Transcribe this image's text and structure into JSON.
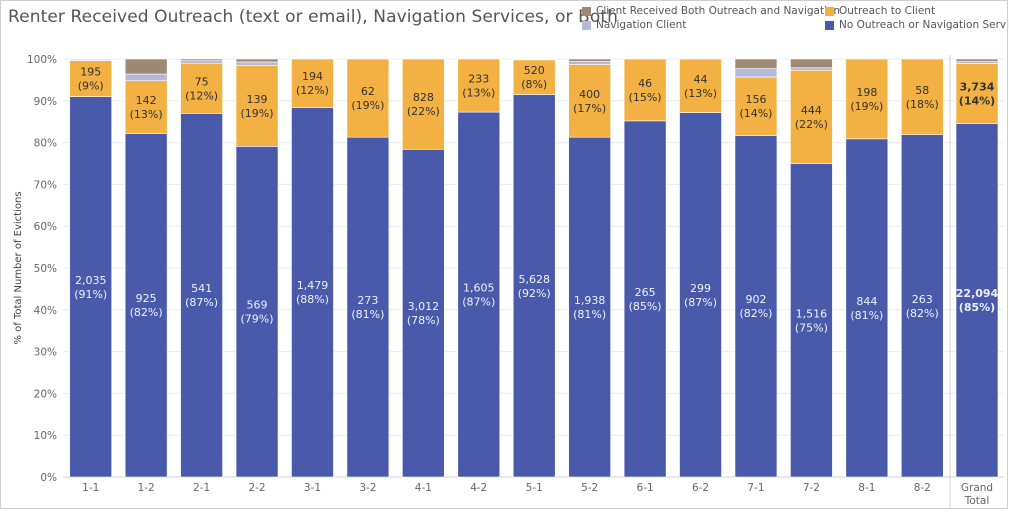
{
  "colors": {
    "both": "#9e8a73",
    "navigation": "#b4b9dc",
    "outreach": "#f2b142",
    "none": "#4a5aab"
  },
  "chart_data": {
    "type": "bar",
    "stacked": true,
    "normalized": true,
    "title": "Renter Received Outreach (text or email), Navigation Services, or Both",
    "ylabel": "% of Total Number of Evictions",
    "xlabel": "",
    "ylim": [
      0,
      100
    ],
    "yticks": [
      "0%",
      "10%",
      "20%",
      "30%",
      "40%",
      "50%",
      "60%",
      "70%",
      "80%",
      "90%",
      "100%"
    ],
    "legend_position": "top-right",
    "categories": [
      "1-1",
      "1-2",
      "2-1",
      "2-2",
      "3-1",
      "3-2",
      "4-1",
      "4-2",
      "5-1",
      "5-2",
      "6-1",
      "6-2",
      "7-1",
      "7-2",
      "8-1",
      "8-2",
      "Grand Total"
    ],
    "series": [
      {
        "key": "none",
        "name": "No Outreach or Navigation Services",
        "values": [
          91.0,
          82.2,
          87.0,
          79.1,
          88.4,
          81.3,
          78.4,
          87.3,
          91.5,
          81.3,
          85.2,
          87.2,
          81.7,
          75.0,
          80.9,
          81.9,
          84.6
        ],
        "labels": [
          "2,035",
          "925",
          "541",
          "569",
          "1,479",
          "273",
          "3,012",
          "1,605",
          "5,628",
          "1,938",
          "265",
          "299",
          "902",
          "1,516",
          "844",
          "263",
          "22,094"
        ],
        "pct_labels": [
          "(91%)",
          "(82%)",
          "(87%)",
          "(79%)",
          "(88%)",
          "(81%)",
          "(78%)",
          "(87%)",
          "(92%)",
          "(81%)",
          "(85%)",
          "(87%)",
          "(82%)",
          "(75%)",
          "(81%)",
          "(82%)",
          "(85%)"
        ]
      },
      {
        "key": "outreach",
        "name": "Outreach to Client",
        "values": [
          8.6,
          12.6,
          12.0,
          19.4,
          11.6,
          18.7,
          21.6,
          12.7,
          8.3,
          17.4,
          14.8,
          12.8,
          14.0,
          22.3,
          19.1,
          18.1,
          14.3
        ],
        "labels": [
          "195",
          "142",
          "75",
          "139",
          "194",
          "62",
          "828",
          "233",
          "520",
          "400",
          "46",
          "44",
          "156",
          "444",
          "198",
          "58",
          "3,734"
        ],
        "pct_labels": [
          "(9%)",
          "(13%)",
          "(12%)",
          "(19%)",
          "(12%)",
          "(19%)",
          "(22%)",
          "(13%)",
          "(8%)",
          "(17%)",
          "(15%)",
          "(13%)",
          "(14%)",
          "(22%)",
          "(19%)",
          "(18%)",
          "(14%)"
        ]
      },
      {
        "key": "navigation",
        "name": "Navigation Client",
        "values": [
          0.2,
          1.6,
          0.6,
          0.8,
          0.0,
          0.0,
          0.0,
          0.0,
          0.1,
          0.7,
          0.0,
          0.0,
          2.0,
          0.6,
          0.0,
          0.0,
          0.5
        ],
        "labels": [],
        "pct_labels": []
      },
      {
        "key": "both",
        "name": "Client Received Both Outreach and Navigation",
        "values": [
          0.2,
          3.6,
          0.4,
          0.7,
          0.0,
          0.0,
          0.0,
          0.0,
          0.1,
          0.6,
          0.0,
          0.0,
          2.3,
          2.1,
          0.0,
          0.0,
          0.6
        ],
        "labels": [],
        "pct_labels": []
      }
    ],
    "legend": [
      {
        "key": "both",
        "name": "Client Received Both Outreach and Navigation"
      },
      {
        "key": "outreach",
        "name": "Outreach to Client"
      },
      {
        "key": "navigation",
        "name": "Navigation Client"
      },
      {
        "key": "none",
        "name": "No Outreach or Navigation Services"
      }
    ]
  }
}
